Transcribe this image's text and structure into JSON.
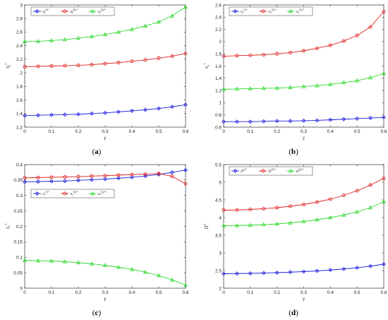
{
  "colors": {
    "blue": "#1f1fe0",
    "red": "#e02020",
    "green": "#2ed82e"
  },
  "chart_data": [
    {
      "id": "a",
      "type": "line",
      "panel_label": [
        "(",
        "a",
        ")"
      ],
      "xlabel": "γ",
      "ylabel": "π_f*",
      "xlim": [
        0,
        0.6
      ],
      "ylim": [
        1.2,
        3
      ],
      "xticks": [
        "0",
        "0.1",
        "0.2",
        "0.3",
        "0.4",
        "0.5",
        "0.6"
      ],
      "yticks": [
        "1.2",
        "1.4",
        "1.6",
        "1.8",
        "2",
        "2.2",
        "2.4",
        "2.6",
        "2.8",
        "3"
      ],
      "legend": "top-left",
      "x": [
        0,
        0.05,
        0.1,
        0.15,
        0.2,
        0.25,
        0.3,
        0.35,
        0.4,
        0.45,
        0.5,
        0.55,
        0.6
      ],
      "series": [
        {
          "name": "π_f^{O*}",
          "marker": "diamond",
          "color": "#1f1fe0",
          "values": [
            1.37,
            1.375,
            1.38,
            1.385,
            1.39,
            1.4,
            1.41,
            1.425,
            1.44,
            1.455,
            1.475,
            1.5,
            1.53
          ]
        },
        {
          "name": "π_f^{D1*}",
          "marker": "circle",
          "color": "#e02020",
          "values": [
            2.09,
            2.095,
            2.1,
            2.105,
            2.11,
            2.12,
            2.135,
            2.15,
            2.17,
            2.19,
            2.215,
            2.245,
            2.285
          ]
        },
        {
          "name": "π_f^{D2*}",
          "marker": "triangle",
          "color": "#2ed82e",
          "values": [
            2.46,
            2.465,
            2.475,
            2.49,
            2.51,
            2.535,
            2.565,
            2.6,
            2.64,
            2.69,
            2.75,
            2.84,
            2.97
          ]
        }
      ]
    },
    {
      "id": "b",
      "type": "line",
      "panel_label": [
        "(",
        "b",
        ")"
      ],
      "xlabel": "γ",
      "ylabel": "π_s*",
      "xlim": [
        0,
        0.6
      ],
      "ylim": [
        0.6,
        2.6
      ],
      "xticks": [
        "0",
        "0.1",
        "0.2",
        "0.3",
        "0.4",
        "0.5",
        "0.6"
      ],
      "yticks": [
        "0.6",
        "0.8",
        "1",
        "1.2",
        "1.4",
        "1.6",
        "1.8",
        "2",
        "2.2",
        "2.4",
        "2.6"
      ],
      "legend": "top-left",
      "x": [
        0,
        0.05,
        0.1,
        0.15,
        0.2,
        0.25,
        0.3,
        0.35,
        0.4,
        0.45,
        0.5,
        0.55,
        0.6
      ],
      "series": [
        {
          "name": "π_s^{O*}",
          "marker": "diamond",
          "color": "#1f1fe0",
          "values": [
            0.69,
            0.69,
            0.69,
            0.695,
            0.7,
            0.7,
            0.705,
            0.71,
            0.72,
            0.73,
            0.74,
            0.75,
            0.76
          ]
        },
        {
          "name": "π_s^{D1*}",
          "marker": "circle",
          "color": "#e02020",
          "values": [
            1.76,
            1.77,
            1.775,
            1.785,
            1.8,
            1.82,
            1.85,
            1.89,
            1.94,
            2.01,
            2.1,
            2.24,
            2.49
          ]
        },
        {
          "name": "π_s^{D2*}",
          "marker": "triangle",
          "color": "#2ed82e",
          "values": [
            1.22,
            1.225,
            1.23,
            1.235,
            1.24,
            1.25,
            1.265,
            1.28,
            1.3,
            1.33,
            1.36,
            1.41,
            1.48
          ]
        }
      ]
    },
    {
      "id": "c",
      "type": "line",
      "panel_label": [
        "(",
        "c",
        ")"
      ],
      "xlabel": "γ",
      "ylabel": "π_r*",
      "xlim": [
        0,
        0.6
      ],
      "ylim": [
        0,
        0.4
      ],
      "xticks": [
        "0",
        "0.1",
        "0.2",
        "0.3",
        "0.4",
        "0.5",
        "0.6"
      ],
      "yticks": [
        "0",
        "0.05",
        "0.1",
        "0.15",
        "0.2",
        "0.25",
        "0.3",
        "0.35",
        "0.4"
      ],
      "legend": "upper-left (below top lines)",
      "x": [
        0,
        0.05,
        0.1,
        0.15,
        0.2,
        0.25,
        0.3,
        0.35,
        0.4,
        0.45,
        0.5,
        0.55,
        0.6
      ],
      "series": [
        {
          "name": "π_r^{O*}",
          "marker": "diamond",
          "color": "#1f1fe0",
          "values": [
            0.344,
            0.345,
            0.346,
            0.347,
            0.349,
            0.351,
            0.353,
            0.356,
            0.359,
            0.363,
            0.368,
            0.375,
            0.382
          ]
        },
        {
          "name": "π_r^{D1*}",
          "marker": "circle",
          "color": "#e02020",
          "values": [
            0.357,
            0.358,
            0.359,
            0.36,
            0.361,
            0.363,
            0.364,
            0.366,
            0.368,
            0.369,
            0.371,
            0.362,
            0.338
          ]
        },
        {
          "name": "π_r^{D2*}",
          "marker": "triangle",
          "color": "#2ed82e",
          "values": [
            0.09,
            0.089,
            0.088,
            0.086,
            0.083,
            0.079,
            0.074,
            0.068,
            0.061,
            0.052,
            0.041,
            0.027,
            0.01
          ]
        }
      ]
    },
    {
      "id": "d",
      "type": "line",
      "panel_label": [
        "(",
        "d",
        ")"
      ],
      "xlabel": "γ",
      "ylabel": "Π*",
      "xlim": [
        0,
        0.6
      ],
      "ylim": [
        2,
        5.5
      ],
      "xticks": [
        "0",
        "0.1",
        "0.2",
        "0.3",
        "0.4",
        "0.5",
        "0.6"
      ],
      "yticks": [
        "2",
        "2.5",
        "3",
        "3.5",
        "4",
        "4.5",
        "5",
        "5.5"
      ],
      "legend": "top-left",
      "x": [
        0,
        0.05,
        0.1,
        0.15,
        0.2,
        0.25,
        0.3,
        0.35,
        0.4,
        0.45,
        0.5,
        0.55,
        0.6
      ],
      "series": [
        {
          "name": "Π^{O*}",
          "marker": "diamond",
          "color": "#1f1fe0",
          "values": [
            2.41,
            2.415,
            2.42,
            2.43,
            2.44,
            2.455,
            2.47,
            2.49,
            2.515,
            2.545,
            2.58,
            2.625,
            2.68
          ]
        },
        {
          "name": "Π^{D1*}",
          "marker": "circle",
          "color": "#e02020",
          "values": [
            4.21,
            4.215,
            4.23,
            4.25,
            4.28,
            4.32,
            4.37,
            4.44,
            4.52,
            4.63,
            4.76,
            4.92,
            5.11
          ]
        },
        {
          "name": "Π^{D2*}",
          "marker": "triangle",
          "color": "#2ed82e",
          "values": [
            3.77,
            3.775,
            3.785,
            3.8,
            3.82,
            3.85,
            3.89,
            3.94,
            4.0,
            4.07,
            4.16,
            4.28,
            4.45
          ]
        }
      ]
    }
  ]
}
